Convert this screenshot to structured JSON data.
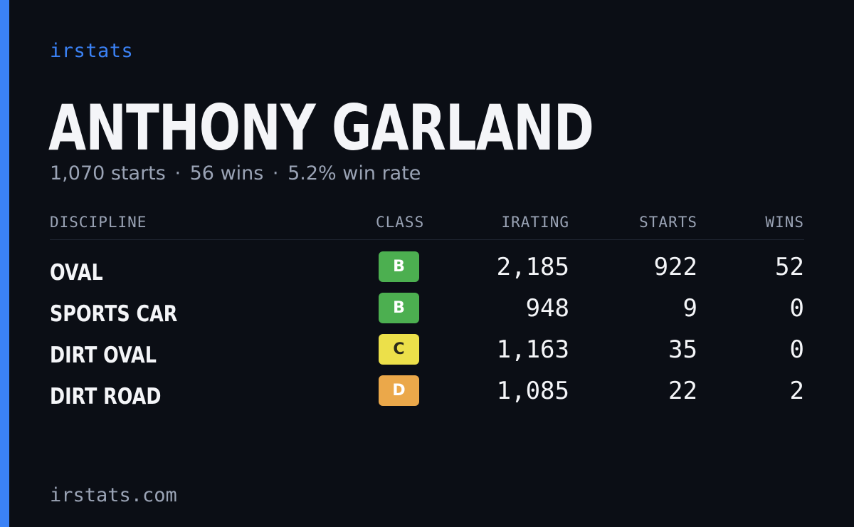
{
  "brand": "irstats",
  "driver": {
    "name": "ANTHONY GARLAND",
    "starts_text": "1,070 starts",
    "wins_text": "56 wins",
    "win_rate_text": "5.2% win rate",
    "separator": "·"
  },
  "table": {
    "headers": {
      "discipline": "DISCIPLINE",
      "class": "CLASS",
      "irating": "IRATING",
      "starts": "STARTS",
      "wins": "WINS"
    },
    "rows": [
      {
        "discipline": "OVAL",
        "class": "B",
        "class_color": "#4caf50",
        "class_text_color": "#ffffff",
        "irating": "2,185",
        "starts": "922",
        "wins": "52"
      },
      {
        "discipline": "SPORTS CAR",
        "class": "B",
        "class_color": "#4caf50",
        "class_text_color": "#ffffff",
        "irating": "948",
        "starts": "9",
        "wins": "0"
      },
      {
        "discipline": "DIRT OVAL",
        "class": "C",
        "class_color": "#ece04a",
        "class_text_color": "#2a2a1a",
        "irating": "1,163",
        "starts": "35",
        "wins": "0"
      },
      {
        "discipline": "DIRT ROAD",
        "class": "D",
        "class_color": "#eba84a",
        "class_text_color": "#ffffff",
        "irating": "1,085",
        "starts": "22",
        "wins": "2"
      }
    ]
  },
  "footer": "irstats.com",
  "colors": {
    "background": "#0b0e15",
    "accent": "#3b82f6",
    "text_primary": "#f4f5f8",
    "text_muted": "#9aa3b5"
  }
}
